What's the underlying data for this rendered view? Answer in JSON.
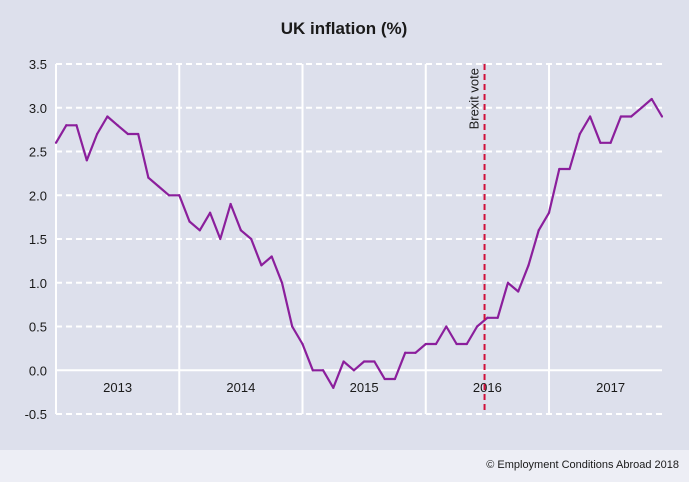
{
  "chart_data": {
    "type": "line",
    "title": "UK inflation (%)",
    "xlabel": "",
    "ylabel": "",
    "ylim": [
      -0.5,
      3.5
    ],
    "yticks": [
      "-0.5",
      "0.0",
      "0.5",
      "1.0",
      "1.5",
      "2.0",
      "2.5",
      "3.0",
      "3.5"
    ],
    "ytick_values": [
      -0.5,
      0,
      0.5,
      1.0,
      1.5,
      2.0,
      2.5,
      3.0,
      3.5
    ],
    "grid": true,
    "x_start": "2013-01",
    "x_end": "2017-12",
    "year_labels": [
      "2013",
      "2014",
      "2015",
      "2016",
      "2017"
    ],
    "series": [
      {
        "color": "#8b1f9c",
        "x": [
          "2013-01",
          "2013-02",
          "2013-03",
          "2013-04",
          "2013-05",
          "2013-06",
          "2013-07",
          "2013-08",
          "2013-09",
          "2013-10",
          "2013-11",
          "2013-12",
          "2014-01",
          "2014-02",
          "2014-03",
          "2014-04",
          "2014-05",
          "2014-06",
          "2014-07",
          "2014-08",
          "2014-09",
          "2014-10",
          "2014-11",
          "2014-12",
          "2015-01",
          "2015-02",
          "2015-03",
          "2015-04",
          "2015-05",
          "2015-06",
          "2015-07",
          "2015-08",
          "2015-09",
          "2015-10",
          "2015-11",
          "2015-12",
          "2016-01",
          "2016-02",
          "2016-03",
          "2016-04",
          "2016-05",
          "2016-06",
          "2016-07",
          "2016-08",
          "2016-09",
          "2016-10",
          "2016-11",
          "2016-12",
          "2017-01",
          "2017-02",
          "2017-03",
          "2017-04",
          "2017-05",
          "2017-06",
          "2017-07",
          "2017-08",
          "2017-09",
          "2017-10",
          "2017-11",
          "2017-12"
        ],
        "values": [
          2.6,
          2.8,
          2.8,
          2.4,
          2.7,
          2.9,
          2.8,
          2.7,
          2.7,
          2.2,
          2.1,
          2.0,
          2.0,
          1.7,
          1.6,
          1.8,
          1.5,
          1.9,
          1.6,
          1.5,
          1.2,
          1.3,
          1.0,
          0.5,
          0.3,
          0.0,
          0.0,
          -0.2,
          0.1,
          0.0,
          0.1,
          0.1,
          -0.1,
          -0.1,
          0.2,
          0.2,
          0.3,
          0.3,
          0.5,
          0.3,
          0.3,
          0.5,
          0.6,
          0.6,
          1.0,
          0.9,
          1.2,
          1.6,
          1.8,
          2.3,
          2.3,
          2.7,
          2.9,
          2.6,
          2.6,
          2.9,
          2.9,
          3.0,
          3.1,
          2.9
        ]
      }
    ],
    "annotations": [
      {
        "label": "Brexit vote",
        "x": "2016-06-23",
        "color": "#d0103a"
      }
    ]
  },
  "footer": {
    "copyright": "© Employment Conditions Abroad 2018"
  }
}
